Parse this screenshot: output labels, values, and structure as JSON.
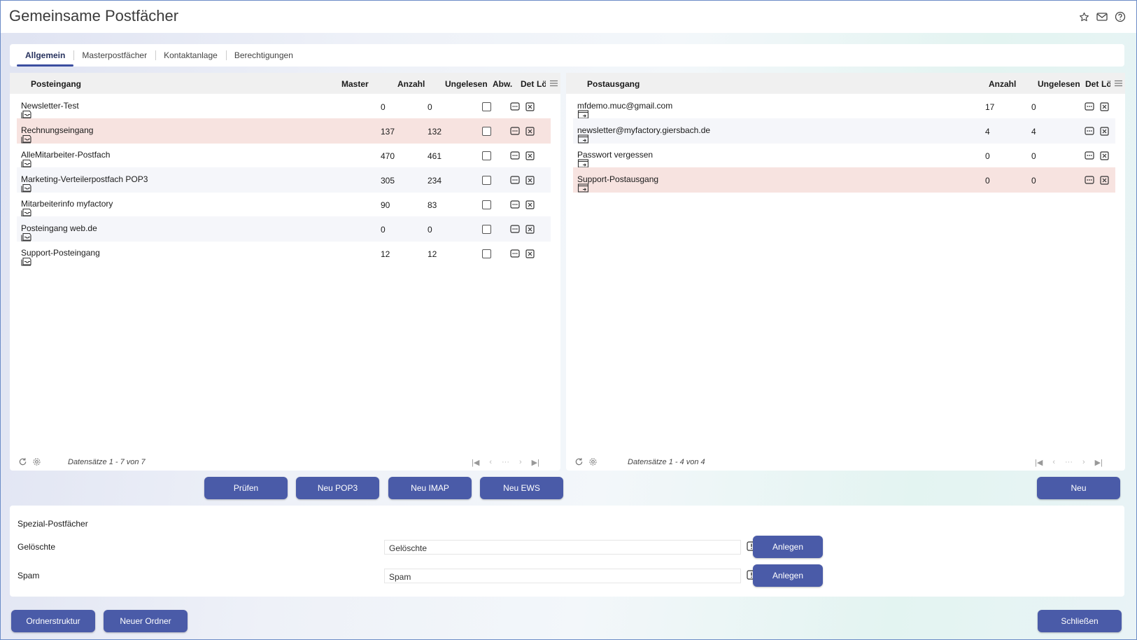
{
  "window": {
    "title": "Gemeinsame Postfächer"
  },
  "title_icons": [
    "star-icon",
    "mail-icon",
    "help-icon"
  ],
  "tabs": [
    {
      "label": "Allgemein",
      "active": true
    },
    {
      "label": "Masterpostfächer",
      "active": false
    },
    {
      "label": "Kontaktanlage",
      "active": false
    },
    {
      "label": "Berechtigungen",
      "active": false
    }
  ],
  "inbox": {
    "headers": {
      "name": "Posteingang",
      "master": "Master",
      "count": "Anzahl",
      "unread": "Ungelesen",
      "abw": "Abw.",
      "det": "Det",
      "del": "Lö"
    },
    "rows": [
      {
        "name": "Newsletter-Test",
        "master": "",
        "count": "0",
        "unread": "0",
        "abw": false
      },
      {
        "name": "Rechnungseingang",
        "master": "",
        "count": "137",
        "unread": "132",
        "abw": false
      },
      {
        "name": "AlleMitarbeiter-Postfach",
        "master": "",
        "count": "470",
        "unread": "461",
        "abw": false
      },
      {
        "name": "Marketing-Verteilerpostfach POP3",
        "master": "",
        "count": "305",
        "unread": "234",
        "abw": false
      },
      {
        "name": "Mitarbeiterinfo myfactory",
        "master": "",
        "count": "90",
        "unread": "83",
        "abw": false
      },
      {
        "name": "Posteingang web.de",
        "master": "",
        "count": "0",
        "unread": "0",
        "abw": false
      },
      {
        "name": "Support-Posteingang",
        "master": "",
        "count": "12",
        "unread": "12",
        "abw": false
      }
    ],
    "selected_index": 1,
    "footer": "Datensätze 1 - 7 von 7"
  },
  "outbox": {
    "headers": {
      "name": "Postausgang",
      "count": "Anzahl",
      "unread": "Ungelesen",
      "det": "Det",
      "del": "Lö"
    },
    "rows": [
      {
        "name": "mfdemo.muc@gmail.com",
        "count": "17",
        "unread": "0"
      },
      {
        "name": "newsletter@myfactory.giersbach.de",
        "count": "4",
        "unread": "4"
      },
      {
        "name": "Passwort vergessen",
        "count": "0",
        "unread": "0"
      },
      {
        "name": "Support-Postausgang",
        "count": "0",
        "unread": "0"
      }
    ],
    "selected_index": 3,
    "footer": "Datensätze 1 - 4 von 4"
  },
  "pager_ellipsis": "···",
  "buttons": {
    "pruefen": "Prüfen",
    "neu_pop3": "Neu POP3",
    "neu_imap": "Neu IMAP",
    "neu_ews": "Neu EWS",
    "neu": "Neu",
    "ordnerstruktur": "Ordnerstruktur",
    "neuer_ordner": "Neuer Ordner",
    "schliessen": "Schließen"
  },
  "spezial": {
    "heading": "Spezial-Postfächer",
    "geloeschte_label": "Gelöschte",
    "geloeschte_value": "Gelöschte",
    "spam_label": "Spam",
    "spam_value": "Spam",
    "anlegen": "Anlegen"
  },
  "colors": {
    "accent": "#4a5ba8",
    "selected_row": "#f7e3e0",
    "alt_row": "#f5f6fa"
  }
}
